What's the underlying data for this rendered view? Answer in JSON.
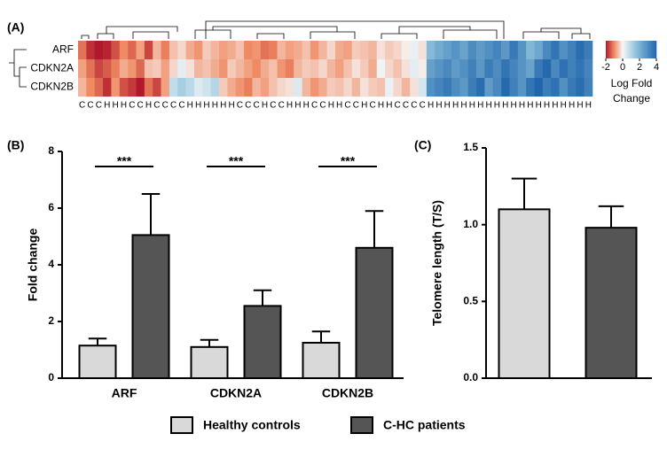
{
  "chart_data": [
    {
      "type": "heatmap",
      "panel": "(A)",
      "rows": [
        "ARF",
        "CDKN2A",
        "CDKN2B"
      ],
      "columns": [
        "C",
        "C",
        "C",
        "H",
        "H",
        "H",
        "C",
        "C",
        "H",
        "C",
        "C",
        "C",
        "C",
        "H",
        "H",
        "H",
        "H",
        "H",
        "H",
        "C",
        "C",
        "C",
        "H",
        "C",
        "C",
        "H",
        "H",
        "H",
        "C",
        "C",
        "H",
        "H",
        "C",
        "C",
        "H",
        "C",
        "H",
        "H",
        "C",
        "C",
        "C",
        "C",
        "H",
        "H",
        "H",
        "H",
        "H",
        "H",
        "H",
        "H",
        "H",
        "H",
        "H",
        "H",
        "H",
        "H",
        "H",
        "H",
        "H",
        "H",
        "H",
        "H"
      ],
      "values": [
        [
          -1.2,
          -1.8,
          -2,
          -1.9,
          -1.5,
          -1,
          -1.3,
          -0.8,
          -1.6,
          -0.6,
          -1.1,
          -0.5,
          -0.3,
          -0.7,
          -0.9,
          -0.4,
          -0.6,
          -0.8,
          -0.7,
          -0.5,
          -1,
          -0.9,
          -1.2,
          -1.1,
          -0.6,
          -0.8,
          -0.7,
          -0.5,
          -0.9,
          -0.6,
          -0.3,
          -0.7,
          -0.8,
          -0.4,
          -0.5,
          -0.6,
          -0.2,
          -0.4,
          -0.3,
          -0.1,
          0.2,
          -0.2,
          1.8,
          2.2,
          2.5,
          2.8,
          2.4,
          3,
          2.6,
          2.9,
          3.2,
          2.7,
          3.5,
          2.8,
          1.9,
          2.3,
          3.1,
          3.6,
          2.9,
          3.3,
          3.8,
          3.4
        ],
        [
          -0.8,
          -1.2,
          -1.6,
          -1.4,
          -1.1,
          -0.7,
          -0.9,
          -1.3,
          -0.5,
          -0.4,
          -0.8,
          -0.3,
          0.3,
          -0.2,
          -0.6,
          -0.5,
          -0.7,
          -0.9,
          -0.4,
          -0.6,
          -0.8,
          -1,
          -0.7,
          -0.5,
          -0.9,
          -1.1,
          -0.6,
          -0.4,
          -0.5,
          -0.3,
          -0.6,
          -0.8,
          -0.5,
          -0.2,
          -0.4,
          -0.7,
          0.1,
          -0.3,
          -0.5,
          -0.2,
          0.3,
          -0.1,
          2.5,
          2.8,
          3.1,
          2.6,
          2.9,
          3.3,
          2.7,
          3.4,
          3,
          3.6,
          3.2,
          2.8,
          2.4,
          3.5,
          3.9,
          3.1,
          3.7,
          3.3,
          3.6,
          3.2
        ],
        [
          -0.6,
          -1,
          -1.3,
          -1.8,
          -0.9,
          -1.5,
          -1.7,
          -2,
          -1.2,
          -1.6,
          -0.8,
          0.8,
          1.2,
          0.9,
          0.4,
          0.6,
          1,
          -0.4,
          -0.7,
          -0.9,
          -1.1,
          -0.6,
          -0.8,
          -0.5,
          -0.3,
          -0.2,
          0.4,
          -0.6,
          -0.9,
          -0.7,
          -0.4,
          -0.5,
          -0.3,
          -0.6,
          -0.2,
          -0.4,
          -0.5,
          0.2,
          -0.3,
          -0.6,
          -0.2,
          0.5,
          2.9,
          3.2,
          3.5,
          3,
          2.7,
          3.4,
          3.8,
          2.6,
          3.1,
          3.9,
          3.3,
          2.8,
          3.6,
          4,
          3.4,
          3.7,
          2.9,
          3.5,
          3.8,
          3.3
        ]
      ],
      "clim": [
        -2,
        4
      ],
      "colorbar_ticks": [
        -2,
        0,
        2,
        4
      ],
      "colorbar_label": "Log Fold Change"
    },
    {
      "type": "bar",
      "panel": "(B)",
      "y_label": "Fold change",
      "categories": [
        "ARF",
        "CDKN2A",
        "CDKN2B"
      ],
      "series": [
        {
          "name": "Healthy controls",
          "color": "#d9d9d9",
          "values": [
            1.15,
            1.1,
            1.25
          ],
          "errors": [
            0.25,
            0.25,
            0.4
          ]
        },
        {
          "name": "C-HC patients",
          "color": "#555555",
          "values": [
            5.05,
            2.55,
            4.6
          ],
          "errors": [
            1.45,
            0.55,
            1.3
          ]
        }
      ],
      "annotations": [
        "***",
        "***",
        "***"
      ],
      "ylim": [
        0,
        8
      ],
      "yticks": [
        0,
        2,
        4,
        6,
        8
      ]
    },
    {
      "type": "bar",
      "panel": "(C)",
      "y_label": "Telomere length (T/S)",
      "series": [
        {
          "color": "#d9d9d9",
          "values": [
            1.1
          ],
          "errors": [
            0.2
          ]
        },
        {
          "color": "#555555",
          "values": [
            0.98
          ],
          "errors": [
            0.14
          ]
        }
      ],
      "ylim": [
        0,
        1.5
      ],
      "yticks": [
        {
          "value": 0,
          "label": "0.0"
        },
        0.5,
        {
          "value": 1,
          "label": "1.0"
        },
        1.5
      ]
    }
  ]
}
